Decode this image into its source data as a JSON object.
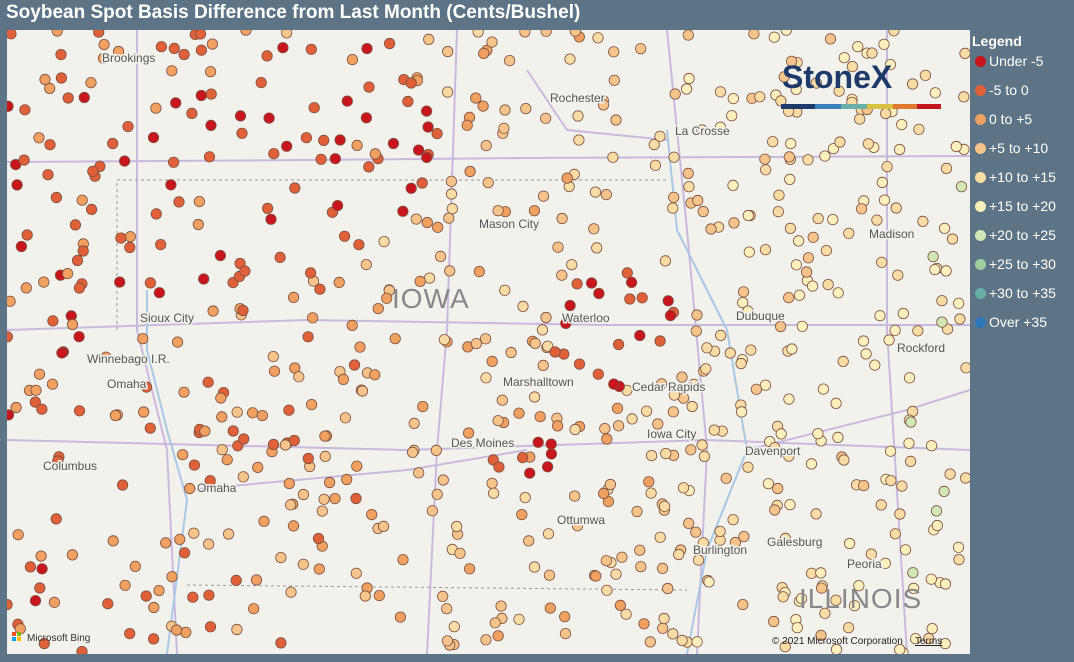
{
  "title": "Soybean Spot Basis Difference from Last Month (Cents/Bushel)",
  "logo": "StoneX",
  "legend": {
    "title": "Legend",
    "items": [
      {
        "label": "Under -5",
        "color": "#c8161c"
      },
      {
        "label": "-5 to 0",
        "color": "#e0603a"
      },
      {
        "label": "0 to +5",
        "color": "#f0a060"
      },
      {
        "label": "+5 to +10",
        "color": "#f6c48a"
      },
      {
        "label": "+10 to +15",
        "color": "#f8dca4"
      },
      {
        "label": "+15 to +20",
        "color": "#fbefbb"
      },
      {
        "label": "+20 to +25",
        "color": "#d2e8b4"
      },
      {
        "label": "+25 to +30",
        "color": "#9fcd9e"
      },
      {
        "label": "+30 to +35",
        "color": "#6aaea8"
      },
      {
        "label": "Over +35",
        "color": "#2e78b8"
      }
    ]
  },
  "cities": [
    {
      "name": "Brookings"
    },
    {
      "name": "Rochester"
    },
    {
      "name": "La Crosse"
    },
    {
      "name": "Mason City"
    },
    {
      "name": "Madison"
    },
    {
      "name": "Sioux City"
    },
    {
      "name": "Waterloo"
    },
    {
      "name": "Dubuque"
    },
    {
      "name": "Winnebago I.R."
    },
    {
      "name": "Omaha"
    },
    {
      "name": "Rockford"
    },
    {
      "name": "Marshalltown"
    },
    {
      "name": "Cedar Rapids"
    },
    {
      "name": "Iowa City"
    },
    {
      "name": "Davenport"
    },
    {
      "name": "Des Moines"
    },
    {
      "name": "Columbus"
    },
    {
      "name": "Omaha"
    },
    {
      "name": "Ottumwa"
    },
    {
      "name": "Burlington"
    },
    {
      "name": "Galesburg"
    },
    {
      "name": "Peoria"
    }
  ],
  "states": [
    {
      "name": "IOWA"
    },
    {
      "name": "ILLINOIS"
    }
  ],
  "attribution": {
    "bing": "Microsoft Bing",
    "copyright": "© 2021 Microsoft Corporation",
    "terms": "Terms"
  }
}
